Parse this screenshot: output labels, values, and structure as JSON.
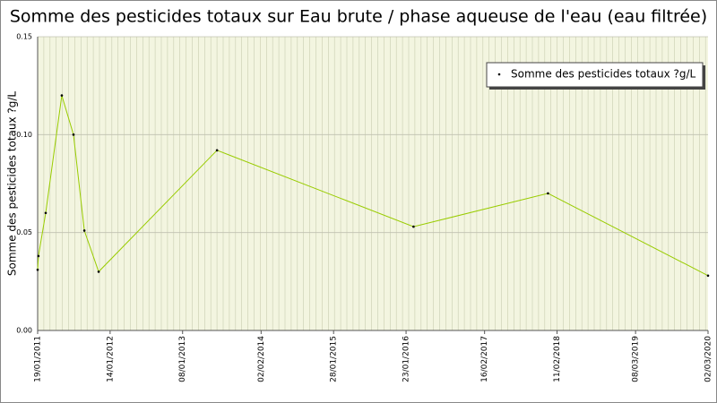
{
  "chart_data": {
    "type": "line",
    "title": "Somme des pesticides totaux sur Eau brute / phase aqueuse de l'eau (eau filtrée)",
    "y_label": "Somme des pesticides totaux ?g/L",
    "x": [
      "19/01/2011",
      "23/01/2011",
      "28/02/2011",
      "19/05/2011",
      "16/07/2011",
      "08/09/2011",
      "18/11/2011",
      "28/06/2013",
      "29/02/2016",
      "28/12/2017",
      "02/03/2020"
    ],
    "series": [
      {
        "name": "Somme des pesticides totaux ?g/L",
        "color": "#99cc00",
        "values": [
          0.031,
          0.038,
          0.06,
          0.12,
          0.1,
          0.051,
          0.03,
          0.092,
          0.053,
          0.07,
          0.028
        ]
      }
    ],
    "xlim": [
      "19/01/2011",
      "02/03/2020"
    ],
    "xticks": [
      "19/01/2011",
      "14/01/2012",
      "08/01/2013",
      "02/02/2014",
      "28/01/2015",
      "23/01/2016",
      "16/02/2017",
      "11/02/2018",
      "08/03/2019",
      "02/03/2020"
    ],
    "ylim": [
      0,
      0.15
    ],
    "yticks": [
      {
        "value": 0,
        "label": "0.00"
      },
      {
        "value": 0.05,
        "label": "0.05"
      },
      {
        "value": 0.1,
        "label": "0.10"
      },
      {
        "value": 0.15,
        "label": "0.15"
      }
    ],
    "grid": true,
    "legend": "top-right"
  }
}
